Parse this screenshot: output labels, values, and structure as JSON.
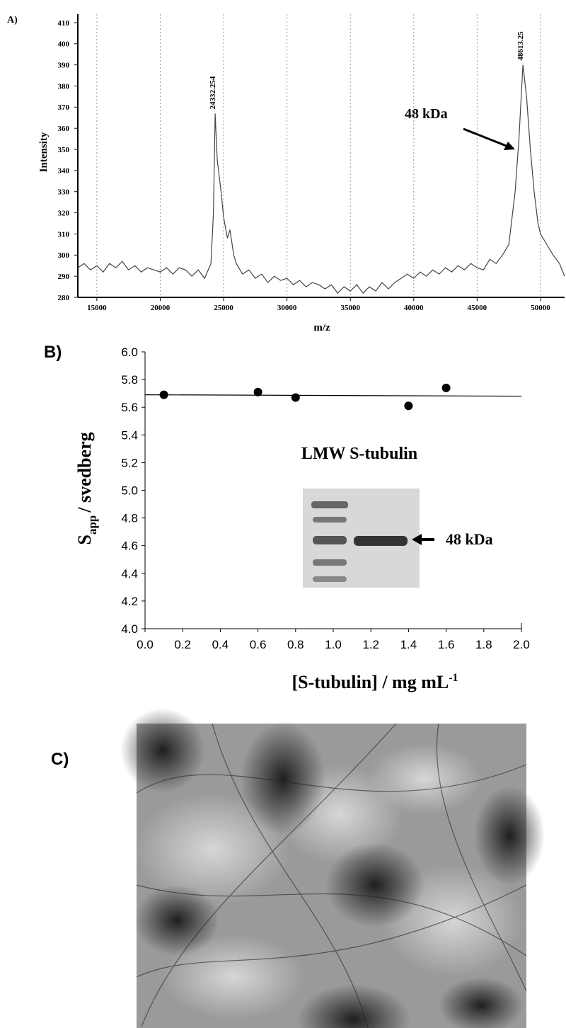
{
  "chart_data": [
    {
      "type": "line",
      "panel_label": "A)",
      "x_label": "m/z",
      "y_label": "Intensity",
      "xlim": [
        13500,
        51900
      ],
      "ylim": [
        280,
        414
      ],
      "xticks": [
        15000,
        20000,
        25000,
        30000,
        35000,
        40000,
        45000,
        50000
      ],
      "yticks": [
        280,
        290,
        300,
        310,
        320,
        330,
        340,
        350,
        360,
        370,
        380,
        390,
        400,
        410
      ],
      "grid": true,
      "series": [
        {
          "color": "#444444",
          "x": [
            13500,
            14000,
            14500,
            15000,
            15500,
            16000,
            16500,
            17000,
            17500,
            18000,
            18500,
            19000,
            19500,
            20000,
            20500,
            21000,
            21500,
            22000,
            22500,
            23000,
            23500,
            24000,
            24200,
            24332,
            24500,
            24800,
            25000,
            25300,
            25500,
            25800,
            26000,
            26500,
            27000,
            27500,
            28000,
            28500,
            29000,
            29500,
            30000,
            30500,
            31000,
            31500,
            32000,
            32500,
            33000,
            33500,
            34000,
            34500,
            35000,
            35500,
            36000,
            36500,
            37000,
            37500,
            38000,
            38500,
            39000,
            39500,
            40000,
            40500,
            41000,
            41500,
            42000,
            42500,
            43000,
            43500,
            44000,
            44500,
            45000,
            45500,
            46000,
            46500,
            47000,
            47500,
            48000,
            48300,
            48613,
            48900,
            49200,
            49500,
            49800,
            50000,
            50500,
            51000,
            51500,
            51900
          ],
          "values": [
            294,
            296,
            293,
            295,
            292,
            296,
            294,
            297,
            293,
            295,
            292,
            294,
            293,
            292,
            294,
            291,
            294,
            293,
            290,
            293,
            289,
            296,
            320,
            367,
            345,
            330,
            318,
            308,
            312,
            300,
            296,
            291,
            293,
            289,
            291,
            287,
            290,
            288,
            289,
            286,
            288,
            285,
            287,
            286,
            284,
            286,
            282,
            285,
            283,
            286,
            282,
            285,
            283,
            287,
            284,
            287,
            289,
            291,
            289,
            292,
            290,
            293,
            291,
            294,
            292,
            295,
            293,
            296,
            294,
            293,
            298,
            296,
            300,
            305,
            330,
            355,
            390,
            375,
            350,
            330,
            315,
            310,
            305,
            300,
            296,
            290
          ]
        }
      ],
      "peaks": [
        {
          "x": 24332.254,
          "label": "24332.254"
        },
        {
          "x": 48613.25,
          "label": "48613.25"
        }
      ],
      "annotation": "48 kDa"
    },
    {
      "type": "scatter",
      "panel_label": "B)",
      "x_label": [
        "[S-tubulin] / mg mL",
        "-1"
      ],
      "y_label": [
        "S",
        "app",
        "/ svedberg"
      ],
      "xlim": [
        0,
        2
      ],
      "ylim": [
        4,
        6
      ],
      "xticks": [
        {
          "value": 0,
          "label": "0.0"
        },
        {
          "value": 0.2,
          "label": "0.2"
        },
        {
          "value": 0.4,
          "label": "0.4"
        },
        {
          "value": 0.6,
          "label": "0.6"
        },
        {
          "value": 0.8,
          "label": "0.8"
        },
        {
          "value": 1,
          "label": "1.0"
        },
        {
          "value": 1.2,
          "label": "1.2"
        },
        {
          "value": 1.4,
          "label": "1.4"
        },
        {
          "value": 1.6,
          "label": "1.6"
        },
        {
          "value": 1.8,
          "label": "1.8"
        },
        {
          "value": 2,
          "label": "2.0"
        }
      ],
      "yticks": [
        {
          "value": 4,
          "label": "4.0"
        },
        {
          "value": 4.2,
          "label": "4.2"
        },
        {
          "value": 4.4,
          "label": "4.4"
        },
        {
          "value": 4.6,
          "label": "4.6"
        },
        {
          "value": 4.8,
          "label": "4.8"
        },
        {
          "value": 5,
          "label": "5.0"
        },
        {
          "value": 5.2,
          "label": "5.2"
        },
        {
          "value": 5.4,
          "label": "5.4"
        },
        {
          "value": 5.6,
          "label": "5.6"
        },
        {
          "value": 5.8,
          "label": "5.8"
        },
        {
          "value": 6,
          "label": "6.0"
        }
      ],
      "series": [
        {
          "color": "#000000",
          "x": [
            0.1,
            0.6,
            0.8,
            1.4,
            1.6
          ],
          "values": [
            5.69,
            5.71,
            5.67,
            5.61,
            5.74
          ]
        }
      ],
      "fit": {
        "x": [
          0,
          2
        ],
        "values": [
          5.69,
          5.68
        ]
      },
      "annotation": "LMW S-tubulin",
      "gel_label": "48 kDa"
    }
  ],
  "image_panel": {
    "label": "C)"
  }
}
